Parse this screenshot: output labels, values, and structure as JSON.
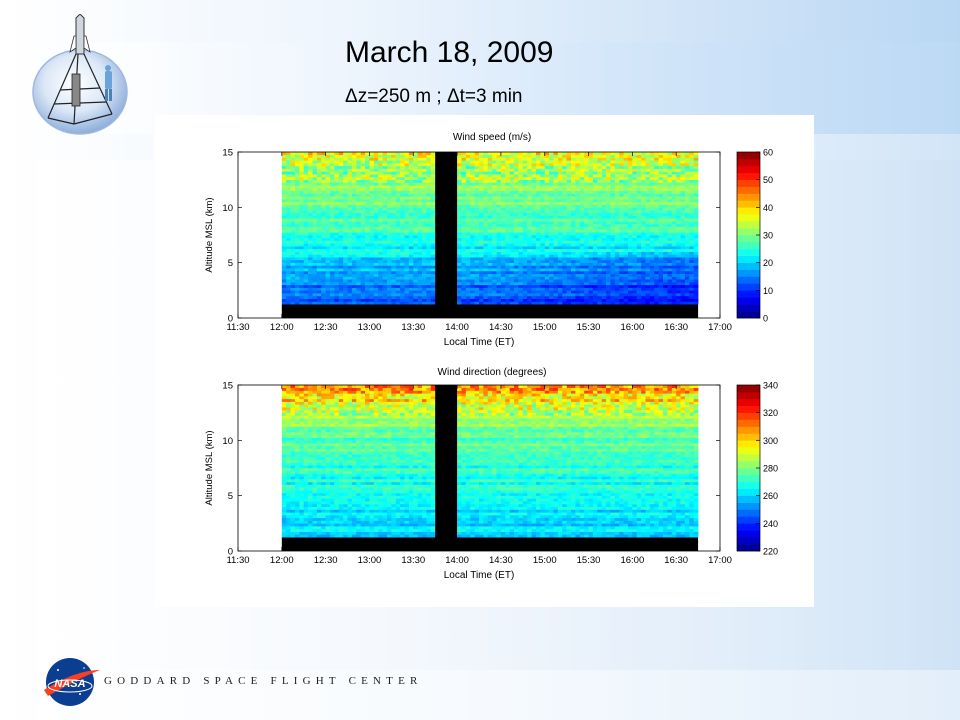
{
  "slide": {
    "title": "March 18, 2009",
    "subtitle_parts": [
      "Δ",
      "z=250 m ; ",
      "Δ",
      "t=3 min"
    ],
    "footer": "GODDARD SPACE FLIGHT CENTER",
    "logo_text": "NASA",
    "colors": {
      "background": "#cfe3f7",
      "nasa_blue": "#0b3d91",
      "nasa_red": "#fc3d21"
    }
  },
  "chart_data": [
    {
      "type": "heatmap",
      "title": "Wind speed (m/s)",
      "xlabel": "Local Time (ET)",
      "ylabel": "Altitude MSL (km)",
      "x_ticks": [
        "11:30",
        "12:00",
        "12:30",
        "13:00",
        "13:30",
        "14:00",
        "14:30",
        "15:00",
        "15:30",
        "16:00",
        "16:30",
        "17:00"
      ],
      "y_ticks": [
        "0",
        "5",
        "10",
        "15"
      ],
      "xlim": [
        "11:30",
        "17:00"
      ],
      "ylim": [
        0,
        15
      ],
      "data_extent_x": [
        "12:00",
        "16:45"
      ],
      "data_gap_x": [
        "13:45",
        "14:00"
      ],
      "colorbar": {
        "ticks": [
          "0",
          "10",
          "20",
          "30",
          "40",
          "50",
          "60"
        ],
        "range": [
          0,
          60
        ]
      },
      "profile_alt_km": [
        1,
        2,
        3,
        4,
        5,
        6,
        7,
        8,
        9,
        10,
        11,
        12,
        13,
        14,
        15
      ],
      "profile_values": [
        12,
        13,
        15,
        17,
        20,
        22,
        24,
        26,
        27,
        28,
        29,
        30,
        32,
        34,
        40
      ]
    },
    {
      "type": "heatmap",
      "title": "Wind direction (degrees)",
      "xlabel": "Local Time (ET)",
      "ylabel": "Altitude MSL (km)",
      "x_ticks": [
        "11:30",
        "12:00",
        "12:30",
        "13:00",
        "13:30",
        "14:00",
        "14:30",
        "15:00",
        "15:30",
        "16:00",
        "16:30",
        "17:00"
      ],
      "y_ticks": [
        "0",
        "5",
        "10",
        "15"
      ],
      "xlim": [
        "11:30",
        "17:00"
      ],
      "ylim": [
        0,
        15
      ],
      "data_extent_x": [
        "12:00",
        "16:45"
      ],
      "data_gap_x": [
        "13:45",
        "14:00"
      ],
      "colorbar": {
        "ticks": [
          "220",
          "240",
          "260",
          "280",
          "300",
          "320",
          "340"
        ],
        "range": [
          220,
          340
        ]
      },
      "profile_alt_km": [
        1,
        2,
        3,
        4,
        5,
        6,
        7,
        8,
        9,
        10,
        11,
        12,
        13,
        14,
        15
      ],
      "profile_values": [
        260,
        262,
        263,
        265,
        267,
        268,
        270,
        272,
        274,
        276,
        280,
        285,
        290,
        300,
        310
      ]
    }
  ]
}
